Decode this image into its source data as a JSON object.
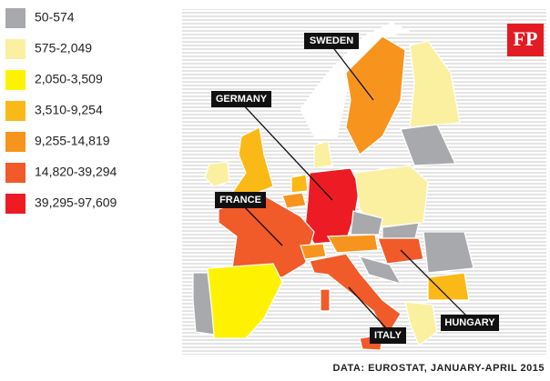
{
  "logo": "FP",
  "legend": [
    {
      "label": "50-574",
      "color": "#a7a9ac"
    },
    {
      "label": "575-2,049",
      "color": "#fbf0a0"
    },
    {
      "label": "2,050-3,509",
      "color": "#fff200"
    },
    {
      "label": "3,510-9,254",
      "color": "#fbb917"
    },
    {
      "label": "9,255-14,819",
      "color": "#f7941d"
    },
    {
      "label": "14,820-39,294",
      "color": "#f15a29"
    },
    {
      "label": "39,295-97,609",
      "color": "#ed1c24"
    }
  ],
  "callouts": [
    "SWEDEN",
    "GERMANY",
    "FRANCE",
    "ITALY",
    "HUNGARY"
  ],
  "source": "DATA: EUROSTAT, JANUARY-APRIL 2015"
}
